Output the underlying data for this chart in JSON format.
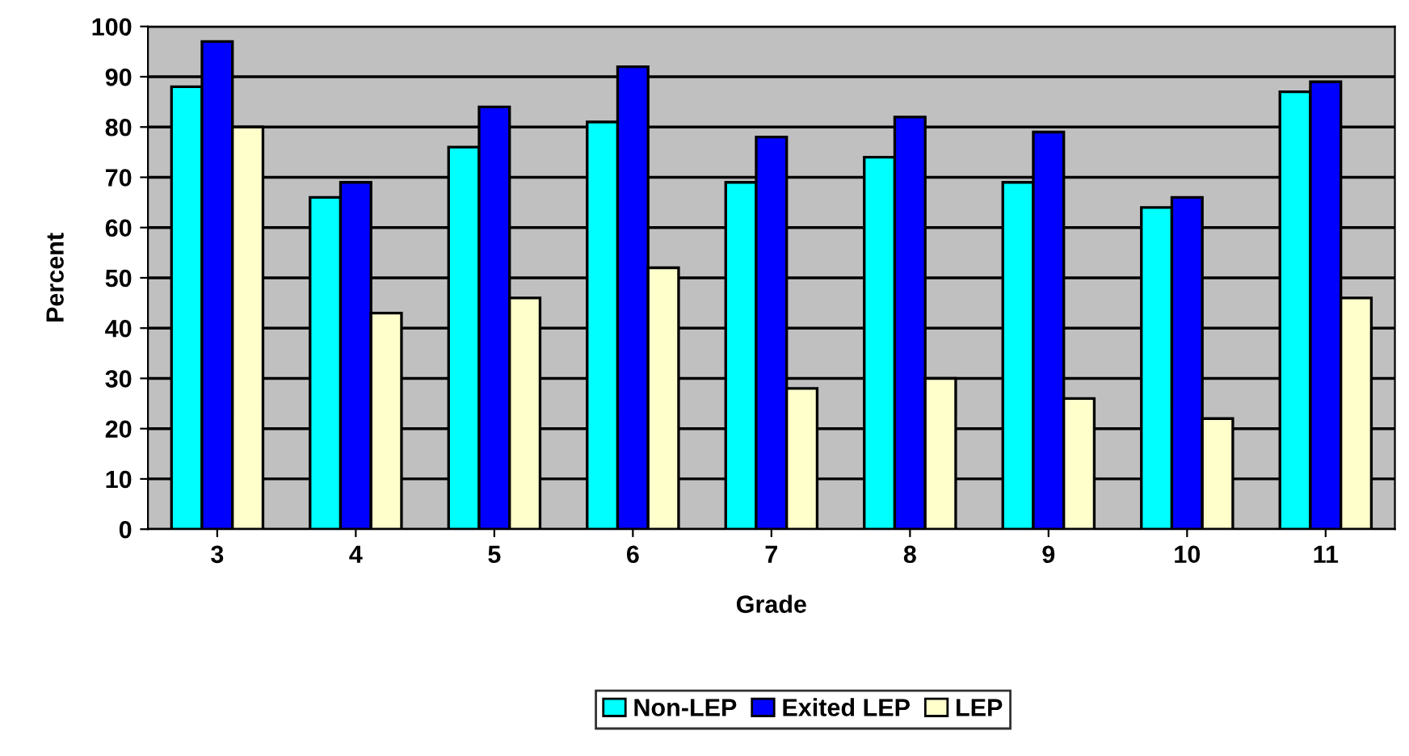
{
  "chart_data": {
    "type": "bar",
    "xlabel": "Grade",
    "ylabel": "Percent",
    "categories": [
      "3",
      "4",
      "5",
      "6",
      "7",
      "8",
      "9",
      "10",
      "11"
    ],
    "series": [
      {
        "name": "Non-LEP",
        "color": "#00ffff",
        "values": [
          88,
          66,
          76,
          81,
          69,
          74,
          69,
          64,
          87
        ]
      },
      {
        "name": "Exited LEP",
        "color": "#0000ff",
        "values": [
          97,
          69,
          84,
          92,
          78,
          82,
          79,
          66,
          89
        ]
      },
      {
        "name": "LEP",
        "color": "#ffffcc",
        "values": [
          80,
          43,
          46,
          52,
          28,
          30,
          26,
          22,
          46
        ]
      }
    ],
    "ylim": [
      0,
      100
    ],
    "yticks": [
      0,
      10,
      20,
      30,
      40,
      50,
      60,
      70,
      80,
      90,
      100
    ],
    "grid": "y",
    "legend": "bottom"
  }
}
